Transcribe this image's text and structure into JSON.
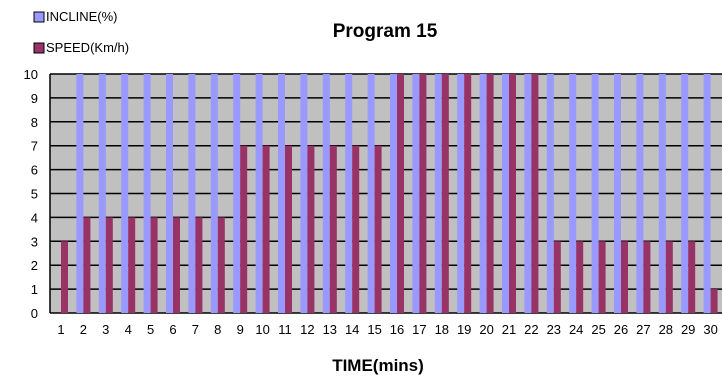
{
  "chart_data": {
    "type": "bar",
    "title": "Program 15",
    "xlabel": "TIME(mins)",
    "ylabel": "",
    "ylim": [
      0,
      10
    ],
    "yticks": [
      0,
      1,
      2,
      3,
      4,
      5,
      6,
      7,
      8,
      9,
      10
    ],
    "grid": true,
    "legend_position": "top-left",
    "categories": [
      "1",
      "2",
      "3",
      "4",
      "5",
      "6",
      "7",
      "8",
      "9",
      "10",
      "11",
      "12",
      "13",
      "14",
      "15",
      "16",
      "17",
      "18",
      "19",
      "20",
      "21",
      "22",
      "23",
      "24",
      "25",
      "26",
      "27",
      "28",
      "29",
      "30"
    ],
    "series": [
      {
        "name": "INCLINE(%)",
        "color": "#9999ff",
        "values": [
          0,
          10,
          10,
          10,
          10,
          10,
          10,
          10,
          10,
          10,
          10,
          10,
          10,
          10,
          10,
          10,
          10,
          10,
          10,
          10,
          10,
          10,
          10,
          10,
          10,
          10,
          10,
          10,
          10,
          10
        ]
      },
      {
        "name": "SPEED(Km/h)",
        "color": "#993366",
        "values": [
          3,
          4,
          4,
          4,
          4,
          4,
          4,
          4,
          7,
          7,
          7,
          7,
          7,
          7,
          7,
          10,
          10,
          10,
          10,
          10,
          10,
          10,
          3,
          3,
          3,
          3,
          3,
          3,
          3,
          1
        ]
      }
    ],
    "colors": {
      "plot_background": "#c0c0c0",
      "gridline": "#000000"
    }
  }
}
